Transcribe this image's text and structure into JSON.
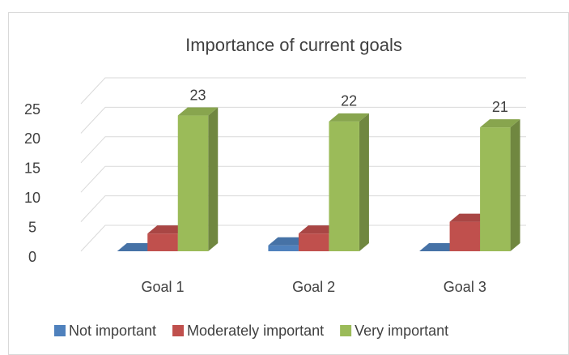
{
  "chart_data": {
    "type": "bar3d",
    "title": "Importance of current goals",
    "categories": [
      "Goal 1",
      "Goal 2",
      "Goal 3"
    ],
    "series": [
      {
        "name": "Not important",
        "color": "#4f81bd",
        "values": [
          0,
          1,
          0
        ]
      },
      {
        "name": "Moderately important",
        "color": "#c0504d",
        "values": [
          3,
          3,
          5
        ]
      },
      {
        "name": "Very important",
        "color": "#9bbb59",
        "values": [
          23,
          22,
          21
        ]
      }
    ],
    "labeled_series": 2,
    "ylim": [
      0,
      25
    ],
    "yticks": [
      0,
      5,
      10,
      15,
      20,
      25
    ],
    "grid": true,
    "legend": "bottom"
  }
}
